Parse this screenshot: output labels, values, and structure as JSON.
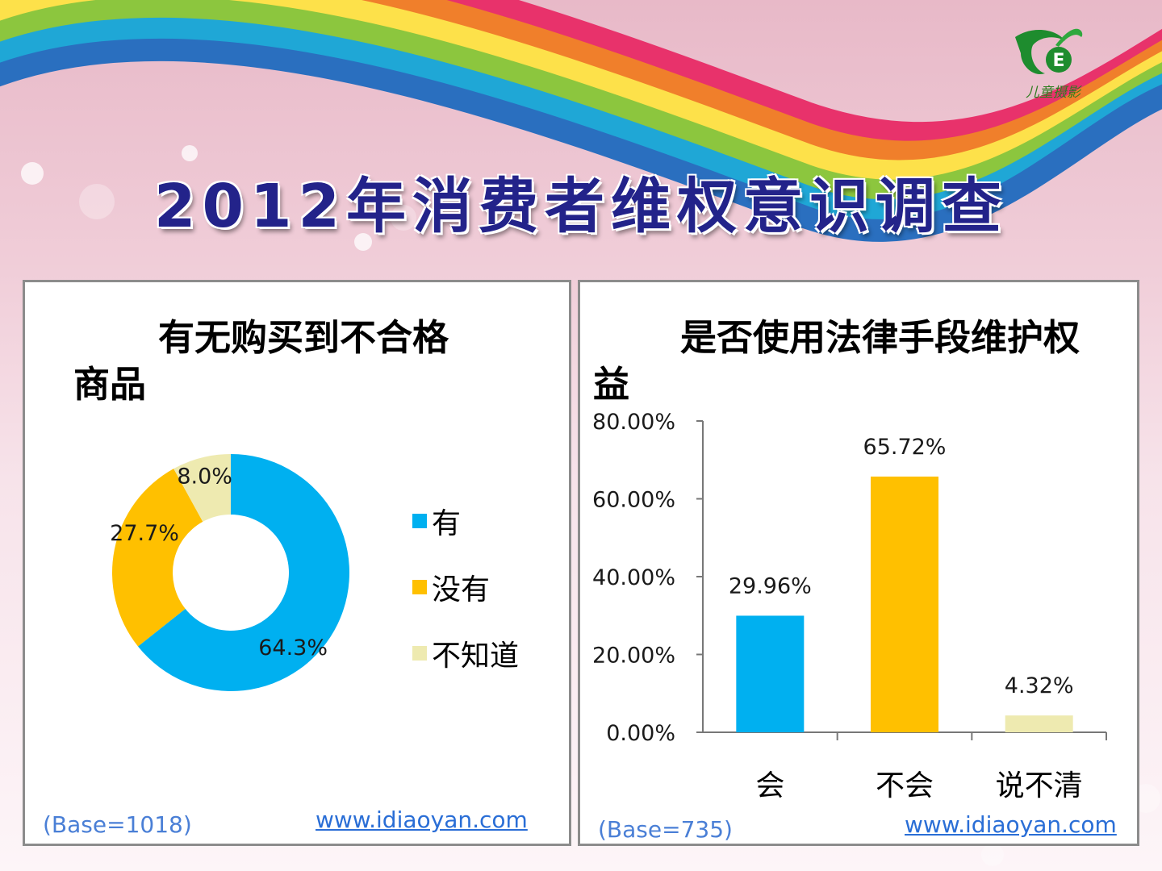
{
  "slide": {
    "title": "2012年消费者维权意识调查",
    "logo_text": "儿童摄影",
    "rainbow_colors": [
      "#e8326b",
      "#f07f2b",
      "#fde14a",
      "#8cc63e",
      "#1fa7d6",
      "#2a6fbf"
    ]
  },
  "left_panel": {
    "title_line1": "有无购买到不合格",
    "title_line2": "商品",
    "base_note": "(Base=1018)",
    "link": "www.idiaoyan.com"
  },
  "right_panel": {
    "title_line1": "是否使用法律手段维护权",
    "title_line2": "益",
    "base_note": "(Base=735)",
    "link": "www.idiaoyan.com"
  },
  "chart_data": [
    {
      "type": "pie",
      "title": "有无购买到不合格商品",
      "donut": true,
      "categories": [
        "有",
        "没有",
        "不知道"
      ],
      "values": [
        64.3,
        27.7,
        8.0
      ],
      "labels": [
        "64.3%",
        "27.7%",
        "8.0%"
      ],
      "colors": [
        "#00b0f0",
        "#ffc000",
        "#eeeab0"
      ],
      "legend": "right"
    },
    {
      "type": "bar",
      "title": "是否使用法律手段维护权益",
      "categories": [
        "会",
        "不会",
        "说不清"
      ],
      "values": [
        29.96,
        65.72,
        4.32
      ],
      "labels": [
        "29.96%",
        "65.72%",
        "4.32%"
      ],
      "colors": [
        "#00b0f0",
        "#ffc000",
        "#eeeab0"
      ],
      "ylim": [
        0,
        80
      ],
      "yticks": [
        "0.00%",
        "20.00%",
        "40.00%",
        "60.00%",
        "80.00%"
      ],
      "ytick_values": [
        0,
        20,
        40,
        60,
        80
      ],
      "grid": false
    }
  ]
}
